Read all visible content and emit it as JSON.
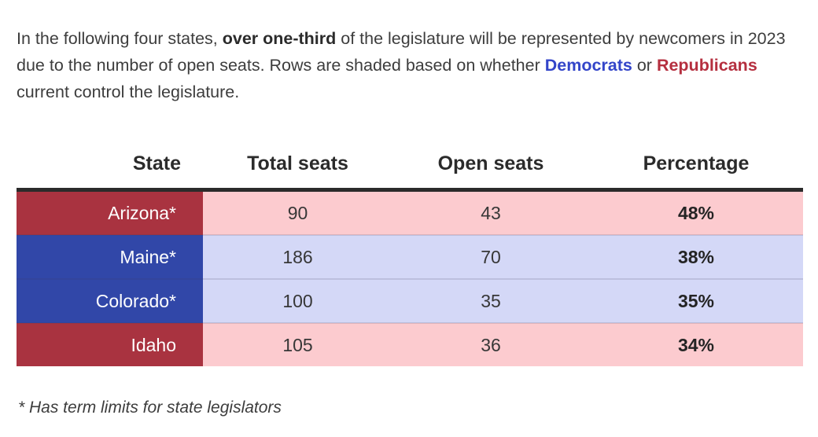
{
  "intro": {
    "segments": [
      {
        "text": "In the following four states, ",
        "style": "normal"
      },
      {
        "text": "over one-third",
        "style": "bold"
      },
      {
        "text": " of the legislature will be represented by newcomers in 2023 due to the number of open seats. Rows are shaded based on whether ",
        "style": "normal"
      },
      {
        "text": "Democrats",
        "style": "democrat"
      },
      {
        "text": " or ",
        "style": "normal"
      },
      {
        "text": "Republicans",
        "style": "republican"
      },
      {
        "text": " current control the legislature.",
        "style": "normal"
      }
    ]
  },
  "chart_data": {
    "type": "table",
    "columns": [
      "State",
      "Total seats",
      "Open seats",
      "Percentage"
    ],
    "rows": [
      {
        "state": "Arizona*",
        "total_seats": 90,
        "open_seats": 43,
        "percentage": "48%",
        "controlling_party": "Republicans"
      },
      {
        "state": "Maine*",
        "total_seats": 186,
        "open_seats": 70,
        "percentage": "38%",
        "controlling_party": "Democrats"
      },
      {
        "state": "Colorado*",
        "total_seats": 100,
        "open_seats": 35,
        "percentage": "35%",
        "controlling_party": "Democrats"
      },
      {
        "state": "Idaho",
        "total_seats": 105,
        "open_seats": 36,
        "percentage": "34%",
        "controlling_party": "Republicans"
      }
    ],
    "footnote": "* Has term limits for state legislators"
  },
  "colors": {
    "republican_solid": "#a93340",
    "republican_tint": "#fccbcf",
    "democrat_solid": "#3147a8",
    "democrat_tint": "#d4d8f7",
    "democrat_text": "#3345c9",
    "republican_text": "#b52f3f",
    "header_rule": "#2b2b2b"
  }
}
